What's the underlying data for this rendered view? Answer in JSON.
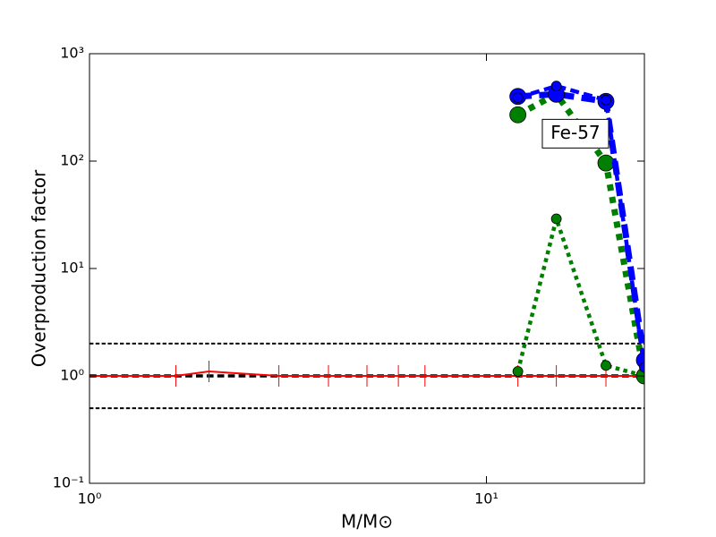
{
  "chart_data": {
    "type": "line",
    "ylabel": "Overproduction factor",
    "xlabel": "M/M⊙",
    "annotation": "Fe-57",
    "log_x": true,
    "log_y": true,
    "xlim": [
      1,
      25
    ],
    "ylim": [
      0.1,
      1000
    ],
    "xticks": [
      {
        "value": 1,
        "label": "10⁰"
      },
      {
        "value": 10,
        "label": "10¹"
      }
    ],
    "yticks": [
      {
        "value": 0.1,
        "label": "10⁻¹"
      },
      {
        "value": 1,
        "label": "10⁰"
      },
      {
        "value": 10,
        "label": "10¹"
      },
      {
        "value": 100,
        "label": "10²"
      },
      {
        "value": 1000,
        "label": "10³"
      }
    ],
    "hlines": [
      {
        "y": 2,
        "color": "#000000",
        "linestyle": "dashed",
        "linewidth": 2
      },
      {
        "y": 1,
        "color": "#000000",
        "linestyle": "dashed",
        "linewidth": 3.5
      },
      {
        "y": 0.5,
        "color": "#000000",
        "linestyle": "dashed",
        "linewidth": 2
      }
    ],
    "series": [
      {
        "color": "#ff0000",
        "linestyle": "solid",
        "linewidth": 2,
        "marker": "|",
        "markersize": 12,
        "x": [
          1,
          1.65,
          2,
          3,
          4,
          5,
          6,
          7,
          12,
          15,
          20,
          25
        ],
        "values": [
          1,
          1,
          1.1,
          1,
          1,
          1,
          1,
          1,
          1,
          1,
          1,
          1
        ]
      },
      {
        "color": "#007f00",
        "linestyle": "dotted",
        "linewidth": 4.5,
        "marker": "o",
        "markersize": 5.5,
        "x": [
          12,
          15,
          20,
          25
        ],
        "values": [
          1.1,
          29,
          1.25,
          1.0
        ]
      },
      {
        "color": "#007f00",
        "linestyle": "dotted",
        "linewidth": 7,
        "marker": "o",
        "markersize": 9,
        "x": [
          12,
          15,
          20,
          25
        ],
        "values": [
          270,
          420,
          96,
          1.0
        ]
      },
      {
        "color": "#0000ff",
        "linestyle": "dashed",
        "linewidth": 7,
        "marker": "o",
        "markersize": 9,
        "x": [
          12,
          15,
          20,
          25
        ],
        "values": [
          400,
          420,
          360,
          1.4
        ]
      },
      {
        "color": "#0000ff",
        "linestyle": "dashed",
        "linewidth": 4.5,
        "marker": "o",
        "markersize": 5.5,
        "x": [
          12,
          15,
          20,
          25
        ],
        "values": [
          390,
          500,
          370,
          1.2
        ]
      }
    ]
  }
}
